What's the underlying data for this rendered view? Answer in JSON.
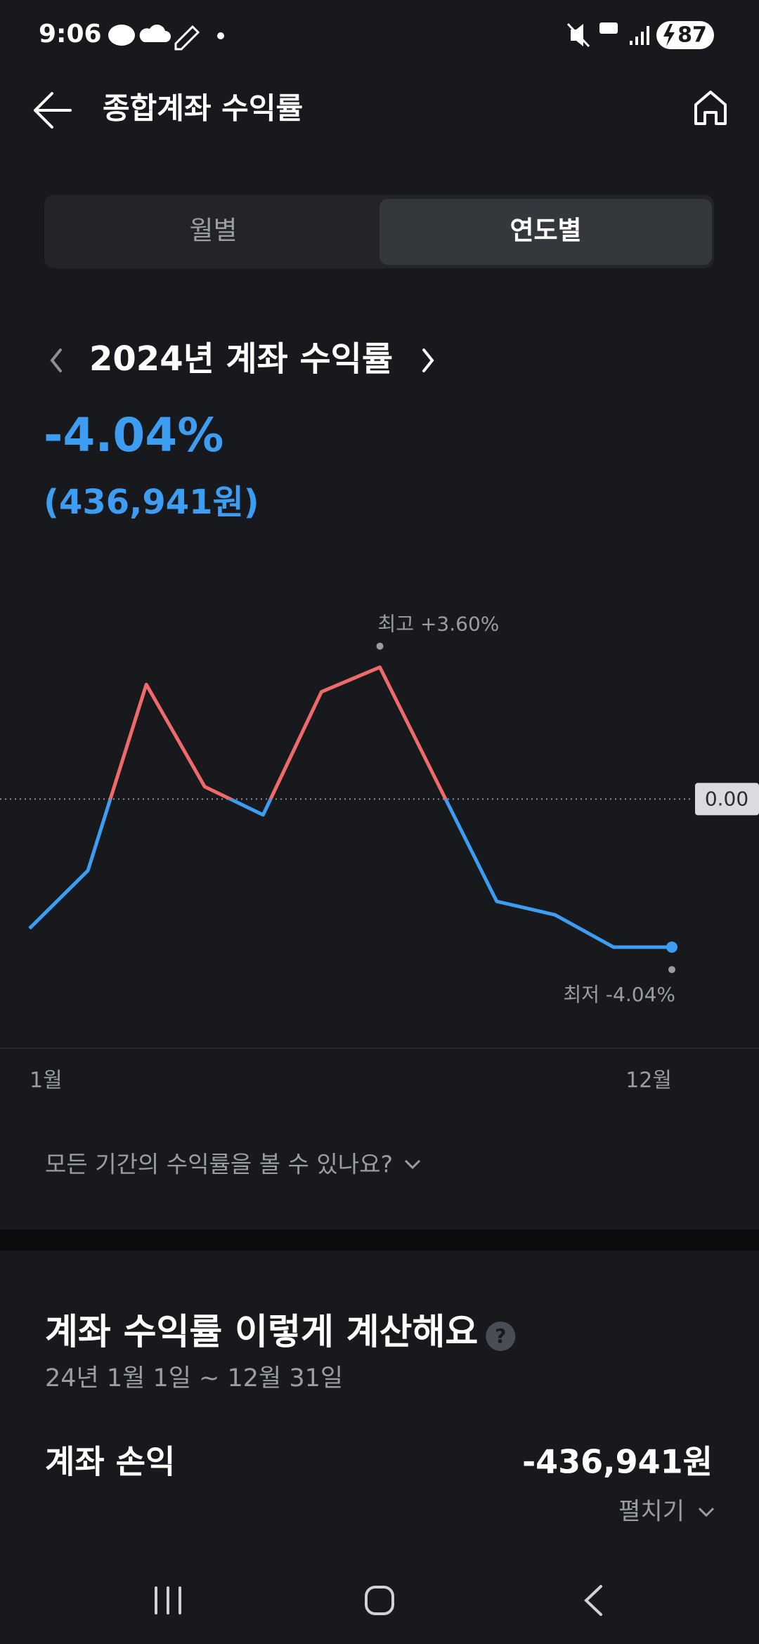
{
  "status_bar": {
    "time": "9:06",
    "battery": "87"
  },
  "header": {
    "title": "종합계좌 수익률"
  },
  "tabs": [
    {
      "label": "월별",
      "active": false
    },
    {
      "label": "연도별",
      "active": true
    }
  ],
  "period": {
    "title": "2024년 계좌 수익률",
    "return_rate": "-4.04%",
    "return_amount": "(436,941원)"
  },
  "chart_data": {
    "type": "line",
    "categories": [
      "1월",
      null,
      null,
      null,
      null,
      null,
      null,
      null,
      null,
      null,
      null,
      "12월"
    ],
    "values": [
      -3.53,
      -1.95,
      3.13,
      0.34,
      -0.43,
      2.93,
      3.6,
      0.4,
      -2.79,
      -3.16,
      -4.04,
      -4.04
    ],
    "color_above": "#f06a6c",
    "color_below": "#3d9df2",
    "ylim": [
      -6.8,
      5.8
    ],
    "yticks": [
      {
        "value": 0,
        "label": "0.00"
      }
    ],
    "annotations": {
      "max_label": "최고 +3.60%",
      "min_label": "최저 -4.04%"
    }
  },
  "faq": "모든 기간의 수익률을 볼 수 있나요?",
  "calculation": {
    "title": "계좌 수익률 이렇게 계산해요",
    "help_icon": "?",
    "period": "24년 1월 1일 ~ 12월 31일",
    "rows": [
      {
        "label": "계좌 손익",
        "value": "-436,941원",
        "expand": "펼치기"
      }
    ]
  }
}
